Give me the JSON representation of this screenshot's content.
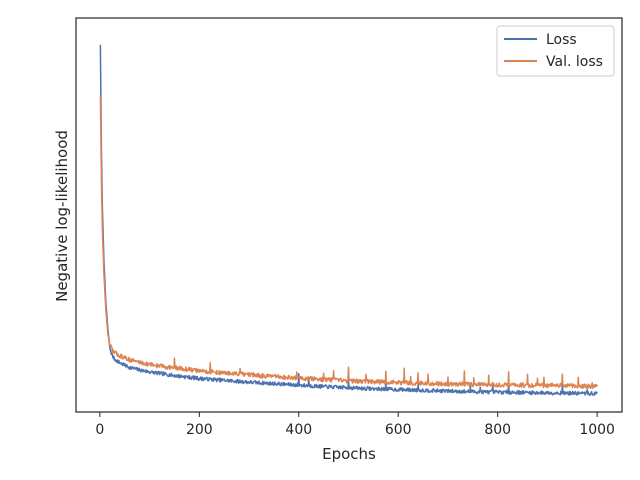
{
  "chart_data": {
    "type": "line",
    "xlabel": "Epochs",
    "ylabel": "Negative log-likelihood",
    "xlim": [
      -48,
      1050
    ],
    "xticks": [
      0,
      200,
      400,
      600,
      800,
      1000
    ],
    "y_ticks_shown": false,
    "ylim": [
      0,
      1
    ],
    "grid": false,
    "legend": {
      "position": "top-right",
      "entries": [
        "Loss",
        "Val. loss"
      ]
    },
    "series": [
      {
        "name": "Loss",
        "color": "#4c72b0",
        "points": [
          [
            1,
            0.96
          ],
          [
            2,
            0.82
          ],
          [
            3,
            0.68
          ],
          [
            5,
            0.52
          ],
          [
            8,
            0.38
          ],
          [
            12,
            0.26
          ],
          [
            16,
            0.19
          ],
          [
            20,
            0.135
          ],
          [
            25,
            0.115
          ],
          [
            30,
            0.105
          ],
          [
            40,
            0.096
          ],
          [
            50,
            0.089
          ],
          [
            60,
            0.083
          ],
          [
            80,
            0.076
          ],
          [
            100,
            0.071
          ],
          [
            150,
            0.061
          ],
          [
            200,
            0.053
          ],
          [
            250,
            0.048
          ],
          [
            300,
            0.043
          ],
          [
            350,
            0.039
          ],
          [
            400,
            0.035
          ],
          [
            450,
            0.031
          ],
          [
            500,
            0.028
          ],
          [
            550,
            0.025
          ],
          [
            600,
            0.023
          ],
          [
            650,
            0.021
          ],
          [
            700,
            0.019
          ],
          [
            750,
            0.017
          ],
          [
            800,
            0.016
          ],
          [
            850,
            0.015
          ],
          [
            900,
            0.014
          ],
          [
            950,
            0.013
          ],
          [
            1000,
            0.012
          ]
        ],
        "noise": 0.005,
        "spikes": [
          [
            400,
            0.032
          ],
          [
            420,
            0.024
          ],
          [
            500,
            0.026
          ],
          [
            575,
            0.02
          ],
          [
            640,
            0.02
          ],
          [
            745,
            0.014
          ],
          [
            765,
            0.014
          ],
          [
            790,
            0.014
          ],
          [
            822,
            0.03
          ],
          [
            930,
            0.026
          ],
          [
            980,
            0.01
          ]
        ]
      },
      {
        "name": "Val. loss",
        "color": "#dd8452",
        "points": [
          [
            1,
            0.82
          ],
          [
            2,
            0.72
          ],
          [
            3,
            0.6
          ],
          [
            5,
            0.46
          ],
          [
            8,
            0.34
          ],
          [
            12,
            0.24
          ],
          [
            16,
            0.175
          ],
          [
            20,
            0.145
          ],
          [
            25,
            0.13
          ],
          [
            30,
            0.123
          ],
          [
            40,
            0.115
          ],
          [
            50,
            0.109
          ],
          [
            60,
            0.104
          ],
          [
            80,
            0.097
          ],
          [
            100,
            0.091
          ],
          [
            150,
            0.082
          ],
          [
            200,
            0.074
          ],
          [
            250,
            0.068
          ],
          [
            300,
            0.063
          ],
          [
            350,
            0.058
          ],
          [
            400,
            0.054
          ],
          [
            450,
            0.05
          ],
          [
            500,
            0.047
          ],
          [
            550,
            0.044
          ],
          [
            600,
            0.042
          ],
          [
            650,
            0.04
          ],
          [
            700,
            0.038
          ],
          [
            750,
            0.037
          ],
          [
            800,
            0.036
          ],
          [
            850,
            0.035
          ],
          [
            900,
            0.034
          ],
          [
            950,
            0.033
          ],
          [
            1000,
            0.032
          ]
        ],
        "noise": 0.006,
        "spikes": [
          [
            150,
            0.025
          ],
          [
            222,
            0.02
          ],
          [
            282,
            0.018
          ],
          [
            396,
            0.016
          ],
          [
            450,
            0.022
          ],
          [
            470,
            0.02
          ],
          [
            500,
            0.035
          ],
          [
            535,
            0.025
          ],
          [
            575,
            0.03
          ],
          [
            612,
            0.035
          ],
          [
            625,
            0.022
          ],
          [
            640,
            0.025
          ],
          [
            660,
            0.02
          ],
          [
            700,
            0.018
          ],
          [
            733,
            0.03
          ],
          [
            752,
            0.02
          ],
          [
            782,
            0.03
          ],
          [
            822,
            0.03
          ],
          [
            860,
            0.025
          ],
          [
            880,
            0.022
          ],
          [
            893,
            0.022
          ],
          [
            930,
            0.03
          ],
          [
            962,
            0.02
          ],
          [
            990,
            0.015
          ]
        ]
      }
    ]
  }
}
